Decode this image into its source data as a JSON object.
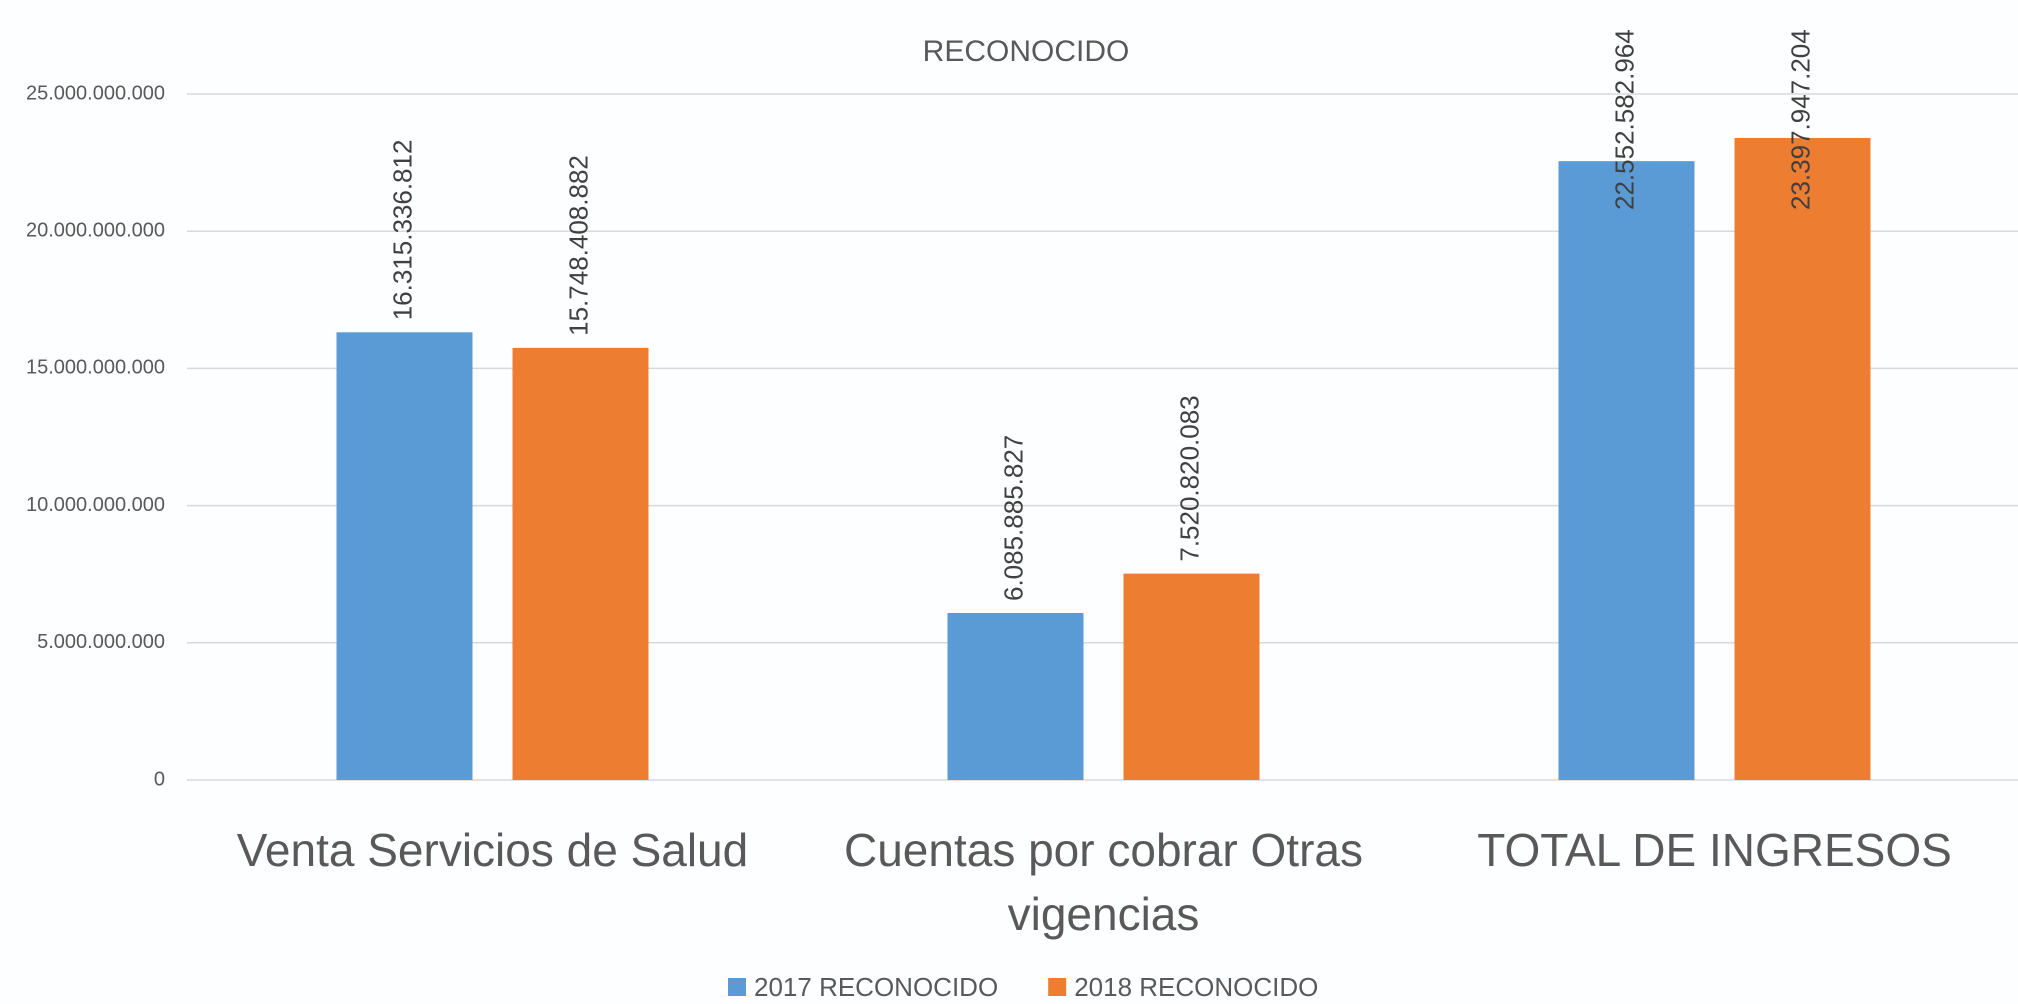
{
  "chart_data": {
    "type": "bar",
    "title": "RECONOCIDO",
    "categories": [
      "Venta Servicios de Salud",
      "Cuentas por cobrar Otras vigencias",
      "TOTAL DE INGRESOS"
    ],
    "series": [
      {
        "name": "2017 RECONOCIDO",
        "color": "#5b9bd5",
        "values": [
          16315336812,
          6085885827,
          22552582964
        ],
        "value_labels": [
          "16.315.336.812",
          "6.085.885.827",
          "22.552.582.964"
        ]
      },
      {
        "name": "2018 RECONOCIDO",
        "color": "#ed7d31",
        "values": [
          15748408882,
          7520820083,
          23397947204
        ],
        "value_labels": [
          "15.748.408.882",
          "7.520.820.083",
          "23.397.947.204"
        ]
      }
    ],
    "ylim": [
      0,
      25000000000
    ],
    "yticks": [
      0,
      {
        "value": 5000000000,
        "label": "5.000.000.000"
      },
      {
        "value": 10000000000,
        "label": "10.000.000.000"
      },
      {
        "value": 15000000000,
        "label": "15.000.000.000"
      },
      {
        "value": 20000000000,
        "label": "20.000.000.000"
      },
      {
        "value": 25000000000,
        "label": "25.000.000.000"
      }
    ],
    "grid": true,
    "legend": "bottom"
  }
}
